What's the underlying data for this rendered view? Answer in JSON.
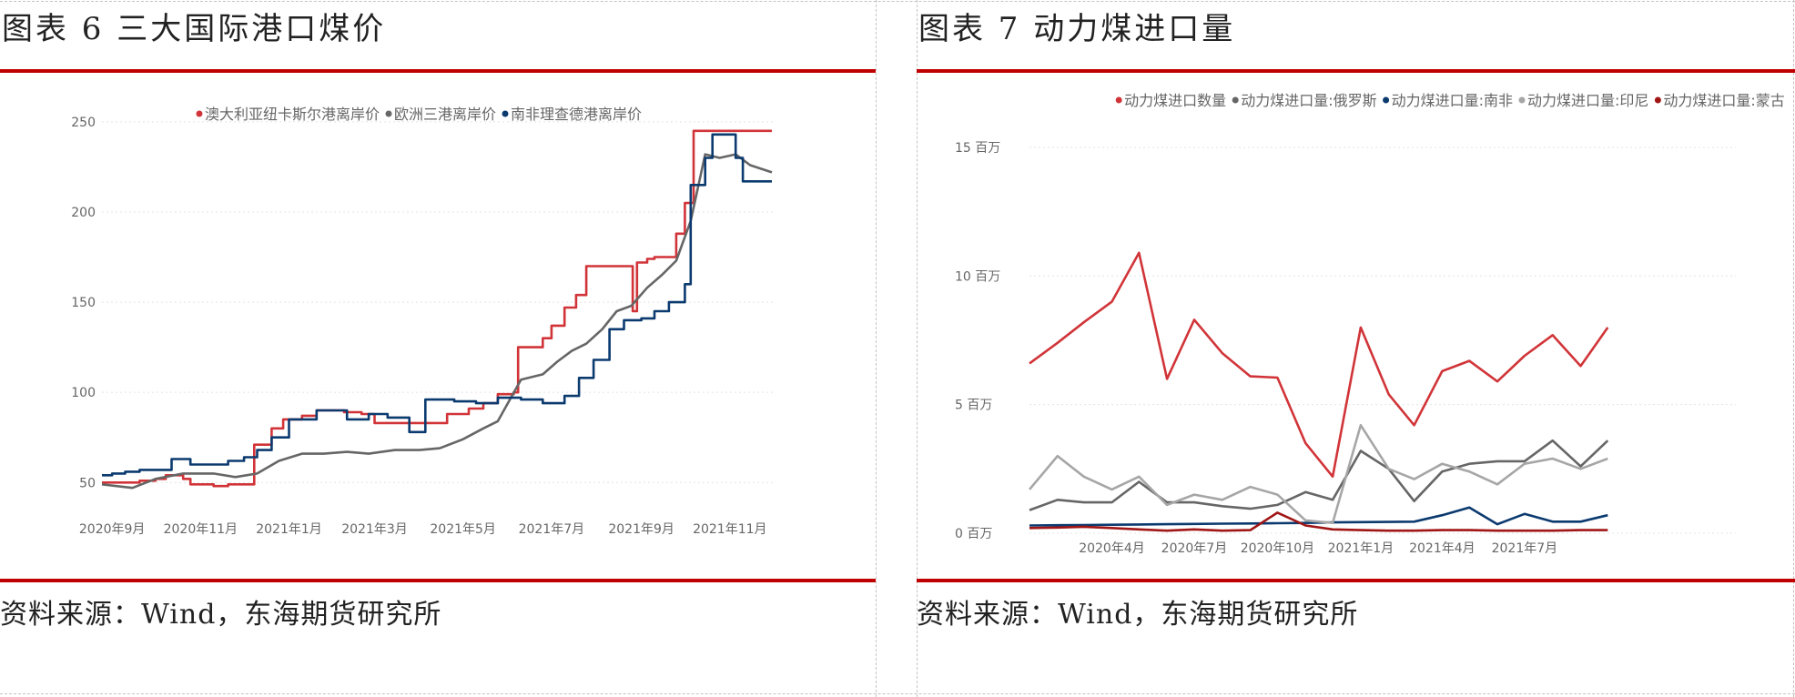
{
  "left_panel": {
    "title": "图表 6 三大国际港口煤价",
    "source": "资料来源：Wind，东海期货研究所"
  },
  "right_panel": {
    "title": "图表 7 动力煤进口量",
    "source": "资料来源：Wind，东海期货研究所"
  },
  "colors": {
    "rule": "#c00000",
    "red": "#d13438",
    "gray": "#666666",
    "navy": "#0b3a6f",
    "light_gray": "#a6a6a6",
    "dark_red": "#a01515",
    "grid": "#e4e4e4",
    "axis_text": "#666666"
  },
  "chart_data": [
    {
      "type": "line",
      "title": "",
      "xlabel": "",
      "ylabel": "",
      "x_range": [
        "2020-08-25",
        "2021-11-30"
      ],
      "ylim": [
        35,
        255
      ],
      "yticks": [
        50,
        100,
        150,
        200,
        250
      ],
      "xticks": [
        {
          "date": "2020-09-01",
          "label": "2020年9月"
        },
        {
          "date": "2020-11-01",
          "label": "2020年11月"
        },
        {
          "date": "2021-01-01",
          "label": "2021年1月"
        },
        {
          "date": "2021-03-01",
          "label": "2021年3月"
        },
        {
          "date": "2021-05-01",
          "label": "2021年5月"
        },
        {
          "date": "2021-07-01",
          "label": "2021年7月"
        },
        {
          "date": "2021-09-01",
          "label": "2021年9月"
        },
        {
          "date": "2021-11-01",
          "label": "2021年11月"
        }
      ],
      "grid": "horizontal dotted",
      "legend_position": "top",
      "series": [
        {
          "name": "澳大利亚纽卡斯尔港离岸价",
          "color": "#d13438",
          "step": true,
          "points": [
            [
              "2020-08-25",
              50
            ],
            [
              "2020-09-15",
              50
            ],
            [
              "2020-09-20",
              51
            ],
            [
              "2020-10-01",
              52
            ],
            [
              "2020-10-08",
              54
            ],
            [
              "2020-10-20",
              52
            ],
            [
              "2020-10-25",
              49
            ],
            [
              "2020-11-10",
              48
            ],
            [
              "2020-11-20",
              49
            ],
            [
              "2020-12-05",
              49
            ],
            [
              "2020-12-08",
              71
            ],
            [
              "2020-12-20",
              80
            ],
            [
              "2020-12-28",
              85
            ],
            [
              "2021-01-10",
              87
            ],
            [
              "2021-01-20",
              90
            ],
            [
              "2021-02-08",
              89
            ],
            [
              "2021-02-20",
              88
            ],
            [
              "2021-03-01",
              83
            ],
            [
              "2021-03-10",
              83
            ],
            [
              "2021-04-10",
              83
            ],
            [
              "2021-04-20",
              88
            ],
            [
              "2021-05-05",
              91
            ],
            [
              "2021-05-15",
              94
            ],
            [
              "2021-05-25",
              99
            ],
            [
              "2021-06-05",
              100
            ],
            [
              "2021-06-08",
              125
            ],
            [
              "2021-06-25",
              130
            ],
            [
              "2021-07-01",
              137
            ],
            [
              "2021-07-10",
              147
            ],
            [
              "2021-07-18",
              154
            ],
            [
              "2021-07-25",
              170
            ],
            [
              "2021-08-25",
              170
            ],
            [
              "2021-08-26",
              145
            ],
            [
              "2021-08-29",
              172
            ],
            [
              "2021-09-05",
              174
            ],
            [
              "2021-09-10",
              175
            ],
            [
              "2021-09-25",
              188
            ],
            [
              "2021-10-01",
              205
            ],
            [
              "2021-10-07",
              245
            ],
            [
              "2021-10-25",
              245
            ],
            [
              "2021-11-30",
              245
            ]
          ]
        },
        {
          "name": "欧洲三港离岸价",
          "color": "#666666",
          "step": false,
          "points": [
            [
              "2020-08-25",
              49
            ],
            [
              "2020-09-15",
              47
            ],
            [
              "2020-10-01",
              52
            ],
            [
              "2020-10-20",
              55
            ],
            [
              "2020-11-10",
              55
            ],
            [
              "2020-11-25",
              53
            ],
            [
              "2020-12-10",
              55
            ],
            [
              "2020-12-25",
              62
            ],
            [
              "2021-01-10",
              66
            ],
            [
              "2021-01-25",
              66
            ],
            [
              "2021-02-10",
              67
            ],
            [
              "2021-02-25",
              66
            ],
            [
              "2021-03-15",
              68
            ],
            [
              "2021-04-01",
              68
            ],
            [
              "2021-04-15",
              69
            ],
            [
              "2021-05-01",
              74
            ],
            [
              "2021-05-15",
              80
            ],
            [
              "2021-05-25",
              84
            ],
            [
              "2021-06-10",
              107
            ],
            [
              "2021-06-25",
              110
            ],
            [
              "2021-07-05",
              117
            ],
            [
              "2021-07-15",
              123
            ],
            [
              "2021-07-25",
              127
            ],
            [
              "2021-08-05",
              135
            ],
            [
              "2021-08-15",
              145
            ],
            [
              "2021-08-25",
              148
            ],
            [
              "2021-09-05",
              158
            ],
            [
              "2021-09-15",
              165
            ],
            [
              "2021-09-25",
              173
            ],
            [
              "2021-10-05",
              195
            ],
            [
              "2021-10-15",
              232
            ],
            [
              "2021-10-25",
              230
            ],
            [
              "2021-11-05",
              232
            ],
            [
              "2021-11-15",
              226
            ],
            [
              "2021-11-30",
              222
            ]
          ]
        },
        {
          "name": "南非理查德港离岸价",
          "color": "#0b3a6f",
          "step": true,
          "points": [
            [
              "2020-08-25",
              54
            ],
            [
              "2020-09-01",
              55
            ],
            [
              "2020-09-10",
              56
            ],
            [
              "2020-09-20",
              57
            ],
            [
              "2020-10-05",
              57
            ],
            [
              "2020-10-12",
              63
            ],
            [
              "2020-10-25",
              60
            ],
            [
              "2020-11-10",
              60
            ],
            [
              "2020-11-20",
              62
            ],
            [
              "2020-12-01",
              64
            ],
            [
              "2020-12-10",
              68
            ],
            [
              "2020-12-20",
              75
            ],
            [
              "2021-01-01",
              85
            ],
            [
              "2021-01-20",
              90
            ],
            [
              "2021-02-05",
              90
            ],
            [
              "2021-02-10",
              85
            ],
            [
              "2021-02-25",
              88
            ],
            [
              "2021-03-10",
              86
            ],
            [
              "2021-03-25",
              78
            ],
            [
              "2021-04-05",
              96
            ],
            [
              "2021-04-25",
              95
            ],
            [
              "2021-05-10",
              94
            ],
            [
              "2021-05-25",
              97
            ],
            [
              "2021-06-10",
              96
            ],
            [
              "2021-06-25",
              94
            ],
            [
              "2021-07-10",
              98
            ],
            [
              "2021-07-20",
              108
            ],
            [
              "2021-07-30",
              118
            ],
            [
              "2021-08-10",
              135
            ],
            [
              "2021-08-20",
              140
            ],
            [
              "2021-09-01",
              141
            ],
            [
              "2021-09-10",
              145
            ],
            [
              "2021-09-20",
              150
            ],
            [
              "2021-10-01",
              160
            ],
            [
              "2021-10-05",
              215
            ],
            [
              "2021-10-15",
              230
            ],
            [
              "2021-10-20",
              243
            ],
            [
              "2021-11-05",
              230
            ],
            [
              "2021-11-10",
              217
            ],
            [
              "2021-11-30",
              217
            ]
          ]
        }
      ]
    },
    {
      "type": "line",
      "title": "",
      "xlabel": "",
      "ylabel": "",
      "x_range": [
        "2020-01-01",
        "2021-12-01"
      ],
      "ylim": [
        0,
        15
      ],
      "y_unit": "百万",
      "yticks": [
        {
          "value": 0,
          "label": "0 百万"
        },
        {
          "value": 5,
          "label": "5 百万"
        },
        {
          "value": 10,
          "label": "10 百万"
        },
        {
          "value": 15,
          "label": "15 百万"
        }
      ],
      "xticks": [
        {
          "date": "2020-04-01",
          "label": "2020年4月"
        },
        {
          "date": "2020-07-01",
          "label": "2020年7月"
        },
        {
          "date": "2020-10-01",
          "label": "2020年10月"
        },
        {
          "date": "2021-01-01",
          "label": "2021年1月"
        },
        {
          "date": "2021-04-01",
          "label": "2021年4月"
        },
        {
          "date": "2021-07-01",
          "label": "2021年7月"
        }
      ],
      "grid": "horizontal dotted",
      "legend_position": "top",
      "months": [
        "2020-01",
        "2020-02",
        "2020-03",
        "2020-04",
        "2020-05",
        "2020-06",
        "2020-07",
        "2020-08",
        "2020-09",
        "2020-10",
        "2020-11",
        "2020-12",
        "2021-01",
        "2021-02",
        "2021-03",
        "2021-04",
        "2021-05",
        "2021-06",
        "2021-07",
        "2021-08",
        "2021-09",
        "2021-10"
      ],
      "series": [
        {
          "name": "动力煤进口数量",
          "color": "#d13438",
          "values": [
            6.6,
            7.4,
            8.2,
            9.0,
            10.9,
            6.0,
            8.3,
            7.0,
            6.1,
            6.05,
            3.5,
            2.2,
            8.0,
            5.4,
            4.2,
            6.3,
            6.7,
            5.9,
            6.9,
            7.7,
            6.5,
            8.0
          ]
        },
        {
          "name": "动力煤进口量:俄罗斯",
          "color": "#666666",
          "values": [
            0.9,
            1.3,
            1.2,
            1.2,
            2.0,
            1.2,
            1.2,
            1.05,
            0.95,
            1.1,
            1.6,
            1.3,
            3.2,
            2.5,
            1.25,
            2.4,
            2.7,
            2.8,
            2.8,
            3.6,
            2.6,
            3.6
          ]
        },
        {
          "name": "动力煤进口量:南非",
          "color": "#0b3a6f",
          "values": [
            0.3,
            0.31,
            0.32,
            0.33,
            0.34,
            0.35,
            0.36,
            0.37,
            0.38,
            0.39,
            0.4,
            0.42,
            0.43,
            0.44,
            0.45,
            0.7,
            1.0,
            0.35,
            0.75,
            0.45,
            0.45,
            0.7
          ]
        },
        {
          "name": "动力煤进口量:印尼",
          "color": "#a6a6a6",
          "values": [
            1.7,
            3.0,
            2.2,
            1.7,
            2.2,
            1.1,
            1.5,
            1.3,
            1.8,
            1.5,
            0.5,
            0.4,
            4.2,
            2.5,
            2.1,
            2.7,
            2.4,
            1.9,
            2.7,
            2.9,
            2.5,
            2.9
          ]
        },
        {
          "name": "动力煤进口量:蒙古",
          "color": "#a01515",
          "values": [
            0.2,
            0.22,
            0.25,
            0.2,
            0.15,
            0.1,
            0.15,
            0.1,
            0.12,
            0.8,
            0.3,
            0.15,
            0.12,
            0.1,
            0.1,
            0.12,
            0.12,
            0.1,
            0.1,
            0.1,
            0.12,
            0.12
          ]
        }
      ]
    }
  ]
}
